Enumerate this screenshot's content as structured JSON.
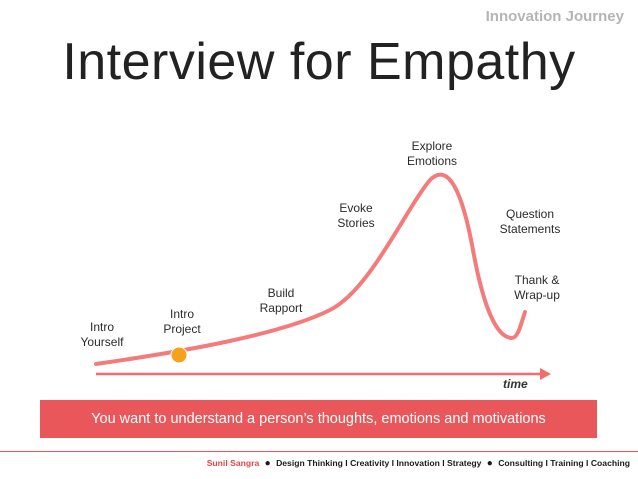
{
  "slide": {
    "brand": "Innovation Journey",
    "title": "Interview for Empathy"
  },
  "diagram": {
    "axis_label": "time",
    "stages": [
      {
        "lines": [
          "Intro",
          "Yourself"
        ]
      },
      {
        "lines": [
          "Intro",
          "Project"
        ]
      },
      {
        "lines": [
          "Build",
          "Rapport"
        ]
      },
      {
        "lines": [
          "Evoke",
          "Stories"
        ]
      },
      {
        "lines": [
          "Explore",
          "Emotions"
        ]
      },
      {
        "lines": [
          "Question",
          "Statements"
        ]
      },
      {
        "lines": [
          "Thank &",
          "Wrap-up"
        ]
      }
    ],
    "marker_stage": "Intro Project"
  },
  "banner": {
    "text": "You want to understand a person’s thoughts, emotions and motivations"
  },
  "footer": {
    "author": "Sunil Sangra",
    "topics": "Design Thinking I Creativity I Innovation I Strategy",
    "services": "Consulting I Training I Coaching"
  },
  "colors": {
    "curve": "#f26d6d",
    "axis": "#f26d6d",
    "banner": "#e9575b",
    "marker": "#f7a21b",
    "footer_line": "#e9575b",
    "author": "#e2464a"
  }
}
